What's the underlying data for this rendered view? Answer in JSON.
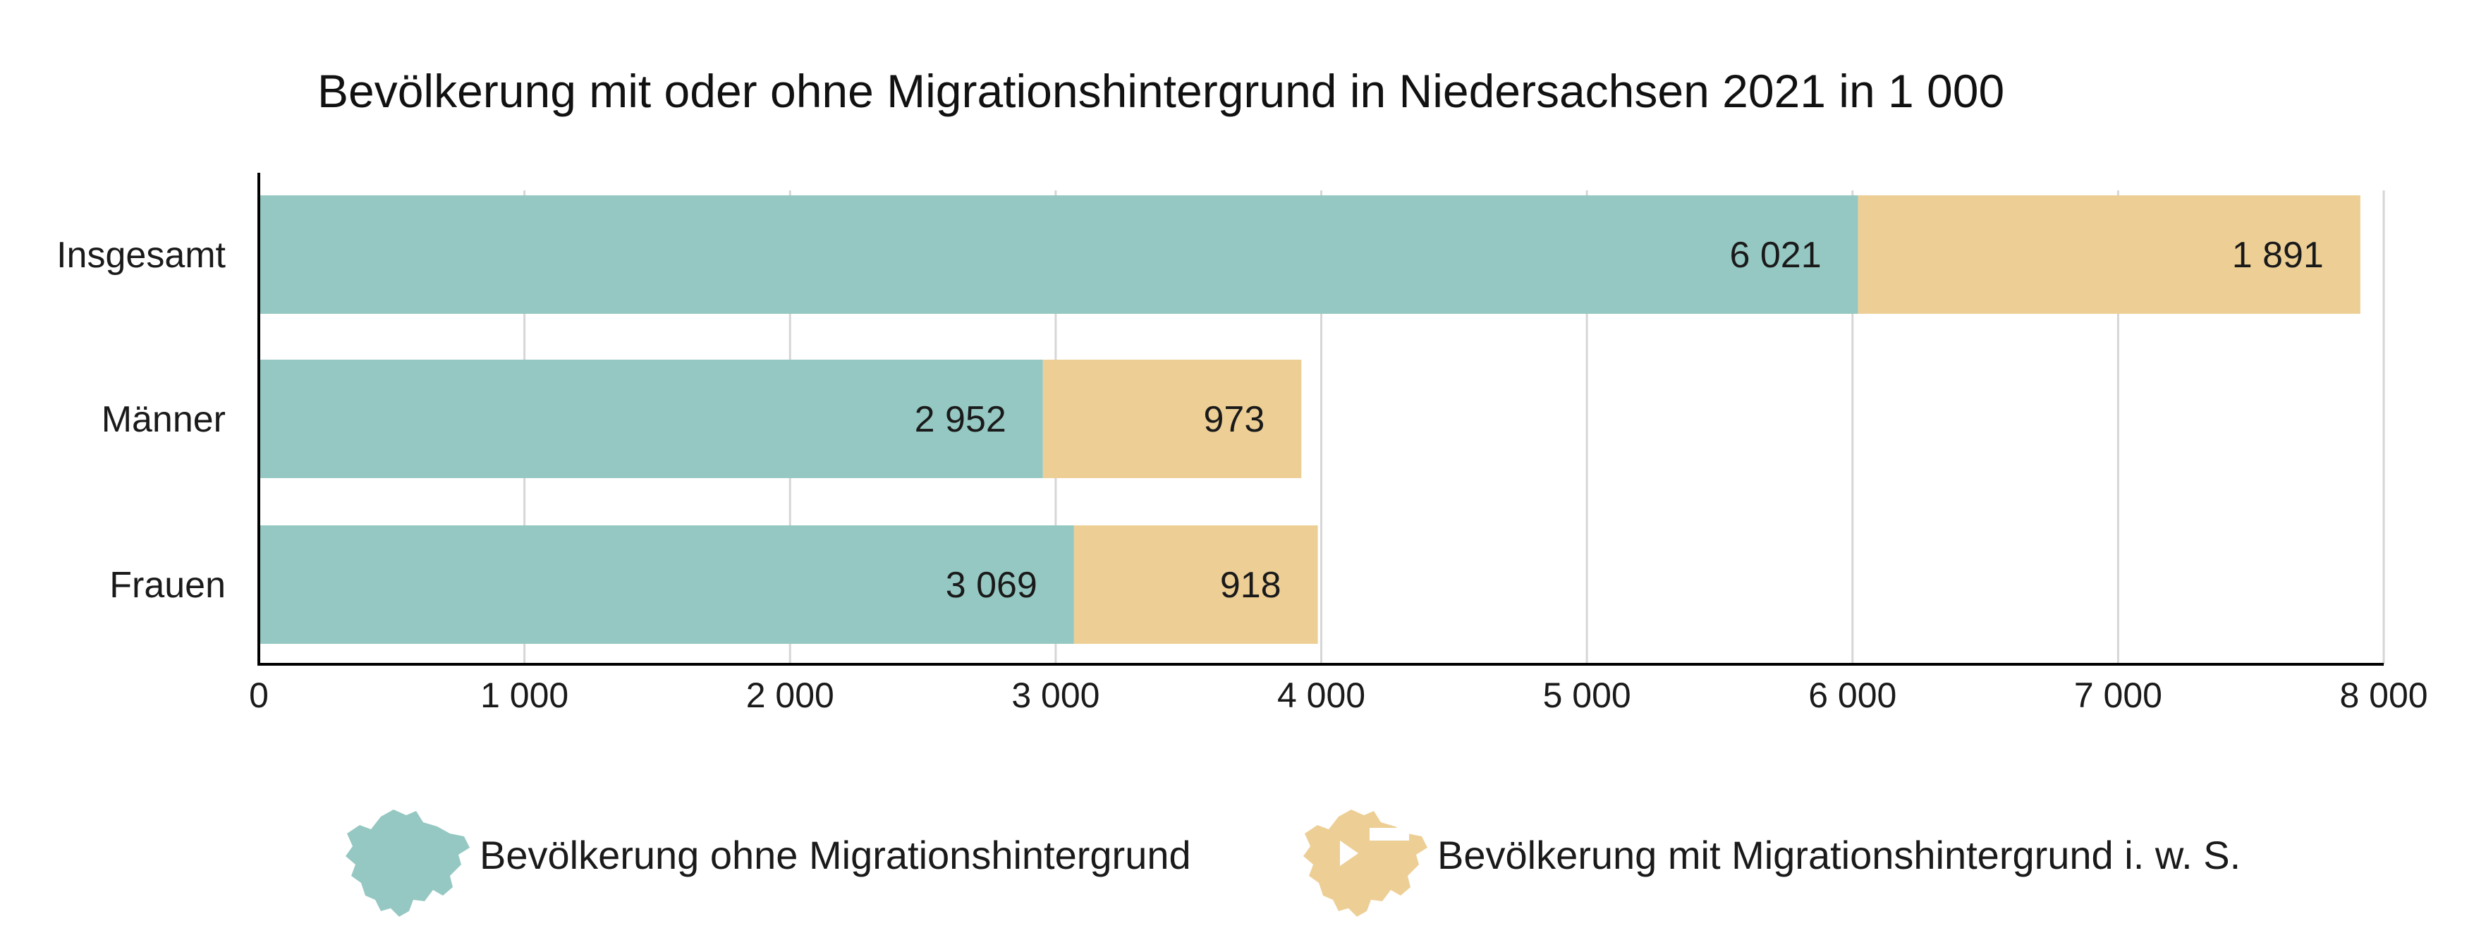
{
  "chart_data": {
    "type": "bar",
    "orientation": "horizontal",
    "stacked": true,
    "title": "Bevölkerung mit oder ohne Migrationshintergrund in Niedersachsen 2021 in 1 000",
    "categories": [
      "Insgesamt",
      "Männer",
      "Frauen"
    ],
    "series": [
      {
        "name": "Bevölkerung ohne Migrationshintergrund",
        "values": [
          6021,
          2952,
          3069
        ],
        "labels": [
          "6 021",
          "2 952",
          "3 069"
        ],
        "color": "#95c8c2"
      },
      {
        "name": "Bevölkerung mit Migrationshintergrund i. w. S.",
        "values": [
          1891,
          973,
          918
        ],
        "labels": [
          "1 891",
          "973",
          "918"
        ],
        "color": "#edcf96"
      }
    ],
    "xlim": [
      0,
      8000
    ],
    "xticks": [
      0,
      1000,
      2000,
      3000,
      4000,
      5000,
      6000,
      7000,
      8000
    ],
    "xtick_labels": [
      "0",
      "1 000",
      "2 000",
      "3 000",
      "4 000",
      "5 000",
      "6 000",
      "7 000",
      "8 000"
    ],
    "grid": true,
    "legend_position": "bottom",
    "legend_icon": "niedersachsen-map-icon"
  }
}
